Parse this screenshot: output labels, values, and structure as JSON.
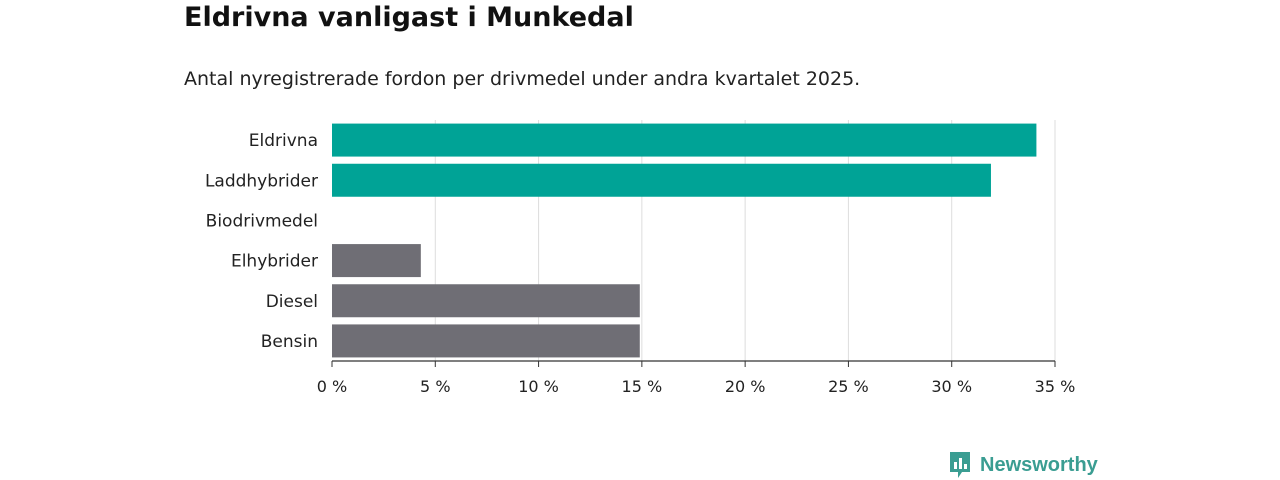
{
  "title": "Eldrivna vanligast i Munkedal",
  "subtitle": "Antal nyregistrerade fordon per drivmedel under andra kvartalet 2025.",
  "brand": {
    "name": "Newsworthy",
    "color": "#3a9d92",
    "icon": "bar-chart-speech-bubble-icon"
  },
  "chart_data": {
    "type": "bar",
    "orientation": "horizontal",
    "categories": [
      "Eldrivna",
      "Laddhybrider",
      "Biodrivmedel",
      "Elhybrider",
      "Diesel",
      "Bensin"
    ],
    "values": [
      34.1,
      31.9,
      0,
      4.3,
      14.9,
      14.9
    ],
    "colors": [
      "#00a396",
      "#00a396",
      "#00a396",
      "#6f6e75",
      "#6f6e75",
      "#6f6e75"
    ],
    "xlim": [
      0,
      35
    ],
    "xticks": [
      0,
      5,
      10,
      15,
      20,
      25,
      30,
      35
    ],
    "xtick_labels": [
      "0 %",
      "5 %",
      "10 %",
      "15 %",
      "20 %",
      "25 %",
      "30 %",
      "35 %"
    ],
    "grid": true,
    "xlabel": "",
    "ylabel": ""
  }
}
